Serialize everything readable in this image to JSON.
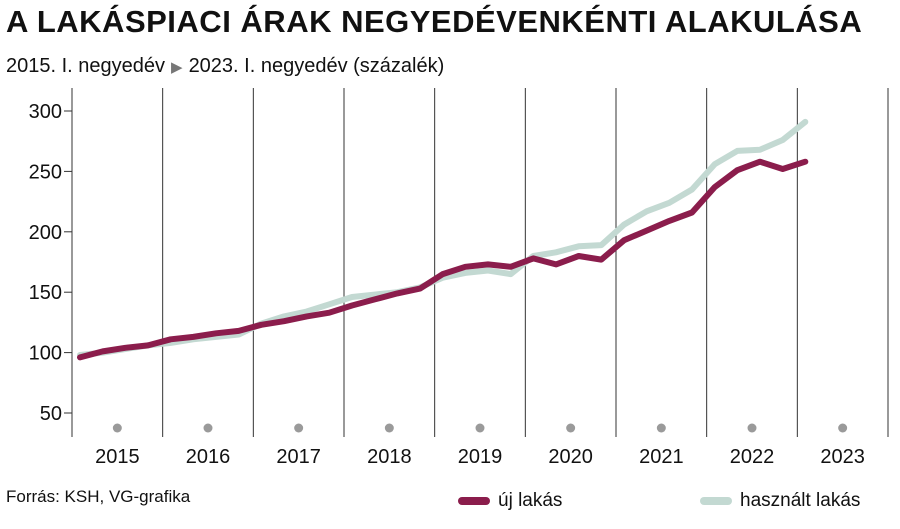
{
  "title": "A LAKÁSPIACI ÁRAK NEGYEDÉVENKÉNTI ALAKULÁSA",
  "subtitle": {
    "start": "2015. I. negyedév",
    "arrow": "▶",
    "end": "2023. I. negyedév (százalék)"
  },
  "source": "Forrás: KSH, VG-grafika",
  "colors": {
    "uj": "#8b1d4c",
    "hasznalt": "#c3d9d2",
    "grid": "#333333",
    "dot": "#9a9a9a"
  },
  "chart_data": {
    "type": "line",
    "title": "A LAKÁSPIACI ÁRAK NEGYEDÉVENKÉNTI ALAKULÁSA",
    "xlabel": "",
    "ylabel": "",
    "ylim": [
      30,
      300
    ],
    "yticks": [
      50,
      100,
      150,
      200,
      250,
      300
    ],
    "year_labels": [
      "2015",
      "2016",
      "2017",
      "2018",
      "2019",
      "2020",
      "2021",
      "2022",
      "2023"
    ],
    "x": [
      "2015 Q1",
      "2015 Q2",
      "2015 Q3",
      "2015 Q4",
      "2016 Q1",
      "2016 Q2",
      "2016 Q3",
      "2016 Q4",
      "2017 Q1",
      "2017 Q2",
      "2017 Q3",
      "2017 Q4",
      "2018 Q1",
      "2018 Q2",
      "2018 Q3",
      "2018 Q4",
      "2019 Q1",
      "2019 Q2",
      "2019 Q3",
      "2019 Q4",
      "2020 Q1",
      "2020 Q2",
      "2020 Q3",
      "2020 Q4",
      "2021 Q1",
      "2021 Q2",
      "2021 Q3",
      "2021 Q4",
      "2022 Q1",
      "2022 Q2",
      "2022 Q3",
      "2022 Q4",
      "2023 Q1"
    ],
    "legend_position": "bottom-right",
    "grid": "vertical year separators",
    "series": [
      {
        "name": "új lakás",
        "color": "#8b1d4c",
        "values": [
          96,
          101,
          104,
          106,
          111,
          113,
          116,
          118,
          123,
          126,
          130,
          133,
          139,
          144,
          149,
          153,
          165,
          171,
          173,
          171,
          178,
          173,
          180,
          177,
          193,
          201,
          209,
          216,
          237,
          251,
          258,
          252,
          258
        ]
      },
      {
        "name": "használt lakás",
        "color": "#c3d9d2",
        "values": [
          98,
          100,
          103,
          106,
          108,
          111,
          113,
          115,
          124,
          130,
          134,
          140,
          146,
          148,
          150,
          154,
          162,
          166,
          168,
          165,
          180,
          183,
          188,
          189,
          206,
          217,
          224,
          235,
          256,
          267,
          268,
          276,
          291
        ]
      }
    ]
  }
}
